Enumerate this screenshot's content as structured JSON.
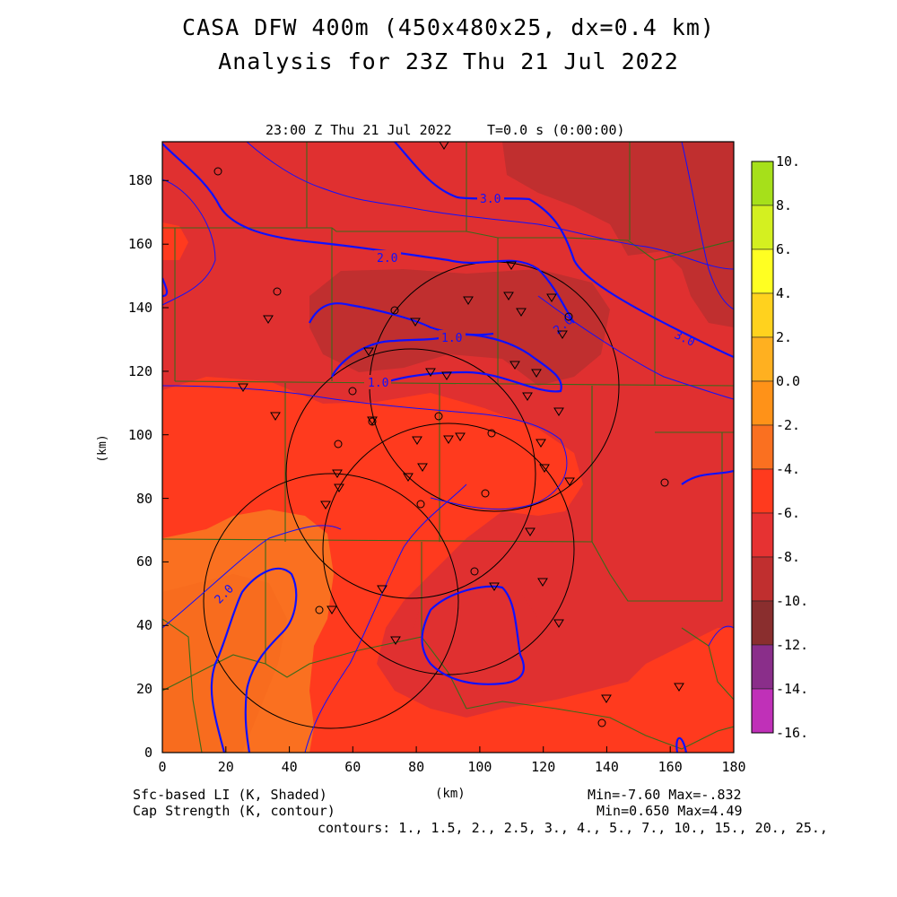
{
  "title_line1": "CASA DFW 400m (450x480x25, dx=0.4 km)",
  "title_line2": "Analysis for 23Z Thu 21 Jul 2022",
  "valid_time": "23:00 Z Thu 21 Jul 2022",
  "model_time": "T=0.0 s (0:00:00)",
  "y_axis_label": "(km)",
  "x_axis_label": "(km)",
  "x_ticks": [
    "0",
    "20",
    "40",
    "60",
    "80",
    "100",
    "120",
    "140",
    "160",
    "180"
  ],
  "y_ticks": [
    "0",
    "20",
    "40",
    "60",
    "80",
    "100",
    "120",
    "140",
    "160",
    "180"
  ],
  "shaded_field": "Sfc-based LI (K, Shaded)",
  "contour_field": "Cap Strength (K, contour)",
  "shaded_stats": "Min=-7.60 Max=-.832",
  "contour_stats": "Min=0.650 Max=4.49",
  "contour_levels": "contours: 1., 1.5, 2., 2.5, 3., 4., 5., 7., 10., 15., 20., 25.,",
  "contour_labels": [
    "3.0",
    "2.0",
    "1.0",
    "1.0",
    "2.0",
    "3.0",
    "2.0"
  ],
  "colorbar": {
    "labels": [
      "10.",
      "8.",
      "6.",
      "4.",
      "2.",
      "0.0",
      "-2.",
      "-4.",
      "-6.",
      "-8.",
      "-10.",
      "-12.",
      "-14.",
      "-16."
    ],
    "colors": [
      "#a6e01a",
      "#d4f020",
      "#ffff22",
      "#ffd21e",
      "#ffb020",
      "#ff9218",
      "#fa7020",
      "#ff3a1e",
      "#e63232",
      "#c02f2f",
      "#8a2e2e",
      "#8a2e8a",
      "#c030b8",
      "#e040e0"
    ]
  },
  "colors": {
    "contour": "#1010ff",
    "boundaries": "#3a6a1a",
    "range_rings": "#000000"
  }
}
